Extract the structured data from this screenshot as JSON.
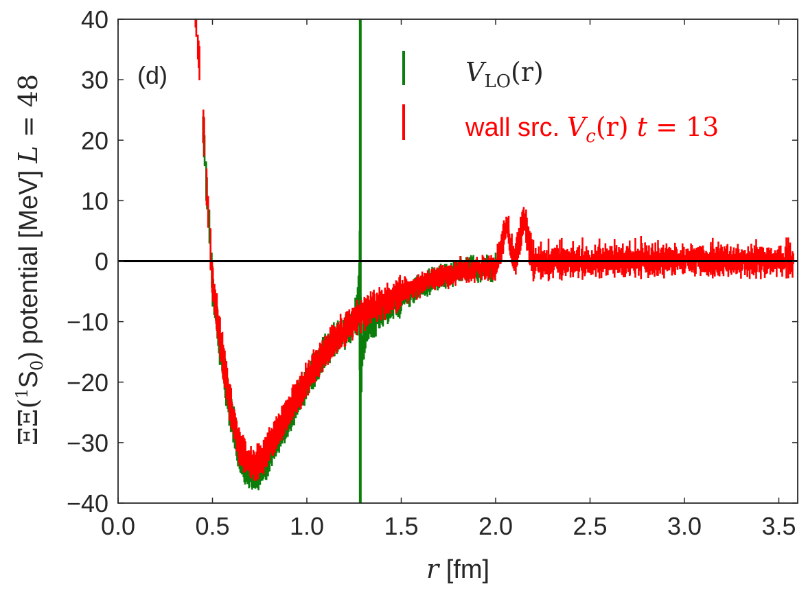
{
  "chart_data": {
    "type": "scatter",
    "panel_label": "(d)",
    "xlim": [
      0.0,
      3.6
    ],
    "ylim": [
      -40,
      40
    ],
    "xticks": [
      0.0,
      0.5,
      1.0,
      1.5,
      2.0,
      2.5,
      3.0,
      3.5
    ],
    "xtick_labels": [
      "0.0",
      "0.5",
      "1.0",
      "1.5",
      "2.0",
      "2.5",
      "3.0",
      "3.5"
    ],
    "yticks": [
      -40,
      -30,
      -20,
      -10,
      0,
      10,
      20,
      30,
      40
    ],
    "ytick_labels": [
      "−40",
      "−30",
      "−20",
      "−10",
      "0",
      "10",
      "20",
      "30",
      "40"
    ],
    "xlabel": {
      "var": "r",
      "unit": " [fm]"
    },
    "ylabel": {
      "prefix": "ΞΞ(",
      "sup": "1",
      "mid": "S",
      "sub": "0",
      "suffix": ") potential [MeV] ",
      "math": "L",
      "eq": " = 48"
    },
    "reference_line_y": 0,
    "series": [
      {
        "name": "V_LO(r)",
        "legend_var": "V",
        "legend_sub": "LO",
        "legend_arg": "(r)",
        "color": "#0a7d0a",
        "points": [
          [
            0.45,
            22
          ],
          [
            0.47,
            12
          ],
          [
            0.49,
            3
          ],
          [
            0.5,
            -4
          ],
          [
            0.52,
            -9
          ],
          [
            0.54,
            -14
          ],
          [
            0.56,
            -18
          ],
          [
            0.58,
            -22
          ],
          [
            0.6,
            -25.5
          ],
          [
            0.62,
            -28.5
          ],
          [
            0.64,
            -31
          ],
          [
            0.66,
            -33
          ],
          [
            0.68,
            -34.5
          ],
          [
            0.7,
            -35.3
          ],
          [
            0.72,
            -35.5
          ],
          [
            0.74,
            -35.2
          ],
          [
            0.76,
            -34.4
          ],
          [
            0.78,
            -33.3
          ],
          [
            0.8,
            -32
          ],
          [
            0.83,
            -30.5
          ],
          [
            0.86,
            -28.5
          ],
          [
            0.9,
            -26
          ],
          [
            0.95,
            -23
          ],
          [
            1.0,
            -20
          ],
          [
            1.05,
            -17.5
          ],
          [
            1.1,
            -15
          ],
          [
            1.15,
            -13
          ],
          [
            1.2,
            -11.5
          ],
          [
            1.25,
            -10
          ],
          [
            1.27,
            -8
          ],
          [
            1.28,
            0
          ],
          [
            1.29,
            -17
          ],
          [
            1.3,
            -13
          ],
          [
            1.32,
            -11
          ],
          [
            1.35,
            -10
          ],
          [
            1.4,
            -8.5
          ],
          [
            1.5,
            -6.2
          ],
          [
            1.6,
            -4.3
          ],
          [
            1.7,
            -2.8
          ],
          [
            1.8,
            -1.8
          ],
          [
            1.9,
            -1.2
          ],
          [
            2.0,
            -0.8
          ]
        ]
      },
      {
        "name": "wall src. V_c(r) t = 13",
        "legend_text": "wall src. ",
        "legend_var": "V",
        "legend_sub": "c",
        "legend_arg": "(r) ",
        "legend_t": "t",
        "legend_eq": " = 13",
        "color": "#ff0000",
        "points": [
          [
            0.41,
            40
          ],
          [
            0.43,
            33
          ],
          [
            0.45,
            24
          ],
          [
            0.46,
            18
          ],
          [
            0.47,
            12
          ],
          [
            0.48,
            7
          ],
          [
            0.49,
            2
          ],
          [
            0.5,
            -3
          ],
          [
            0.52,
            -8
          ],
          [
            0.54,
            -13
          ],
          [
            0.56,
            -17
          ],
          [
            0.58,
            -21
          ],
          [
            0.6,
            -24.5
          ],
          [
            0.62,
            -27.5
          ],
          [
            0.64,
            -30
          ],
          [
            0.66,
            -31.8
          ],
          [
            0.68,
            -33
          ],
          [
            0.7,
            -33.7
          ],
          [
            0.72,
            -33.8
          ],
          [
            0.74,
            -33.4
          ],
          [
            0.76,
            -32.6
          ],
          [
            0.78,
            -31.6
          ],
          [
            0.8,
            -30.4
          ],
          [
            0.83,
            -29
          ],
          [
            0.86,
            -27.3
          ],
          [
            0.9,
            -25
          ],
          [
            0.95,
            -22.2
          ],
          [
            1.0,
            -19.6
          ],
          [
            1.05,
            -17.2
          ],
          [
            1.1,
            -15
          ],
          [
            1.15,
            -13
          ],
          [
            1.2,
            -11.3
          ],
          [
            1.25,
            -9.8
          ],
          [
            1.3,
            -8.6
          ],
          [
            1.35,
            -7.6
          ],
          [
            1.4,
            -6.7
          ],
          [
            1.5,
            -5.2
          ],
          [
            1.6,
            -3.9
          ],
          [
            1.7,
            -2.8
          ],
          [
            1.8,
            -1.9
          ],
          [
            1.9,
            -1.3
          ],
          [
            2.0,
            -0.8
          ],
          [
            2.06,
            5.8
          ],
          [
            2.1,
            -0.5
          ],
          [
            2.15,
            7.0
          ],
          [
            2.2,
            -0.3
          ],
          [
            2.4,
            0.0
          ],
          [
            2.6,
            0.1
          ],
          [
            2.8,
            0.2
          ],
          [
            3.0,
            0.2
          ],
          [
            3.2,
            0.1
          ],
          [
            3.4,
            0.0
          ],
          [
            3.58,
            0.2
          ]
        ]
      }
    ]
  }
}
